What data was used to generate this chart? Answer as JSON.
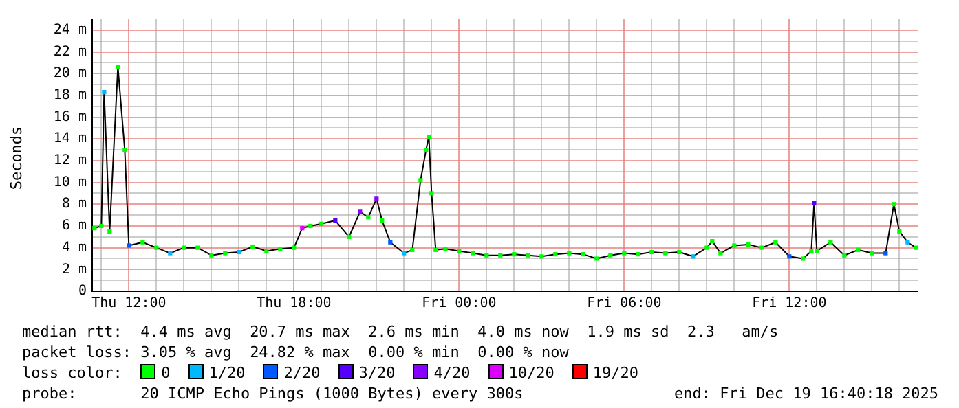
{
  "chart_data": {
    "type": "line",
    "ylabel": "Seconds",
    "legend_title": "loss color:",
    "xlim": [
      "2025-12-18T10:40",
      "2025-12-19T16:40"
    ],
    "ylim": [
      0,
      25
    ],
    "xticks": [
      {
        "value": "2025-12-18T11:00",
        "label": null
      },
      {
        "value": "2025-12-18T12:00",
        "label": "Thu 12:00"
      },
      {
        "value": "2025-12-18T13:00",
        "label": null
      },
      {
        "value": "2025-12-18T14:00",
        "label": null
      },
      {
        "value": "2025-12-18T15:00",
        "label": null
      },
      {
        "value": "2025-12-18T16:00",
        "label": null
      },
      {
        "value": "2025-12-18T17:00",
        "label": null
      },
      {
        "value": "2025-12-18T18:00",
        "label": "Thu 18:00"
      },
      {
        "value": "2025-12-18T19:00",
        "label": null
      },
      {
        "value": "2025-12-18T20:00",
        "label": null
      },
      {
        "value": "2025-12-18T21:00",
        "label": null
      },
      {
        "value": "2025-12-18T22:00",
        "label": null
      },
      {
        "value": "2025-12-18T23:00",
        "label": null
      },
      {
        "value": "2025-12-19T00:00",
        "label": "Fri 00:00"
      },
      {
        "value": "2025-12-19T01:00",
        "label": null
      },
      {
        "value": "2025-12-19T02:00",
        "label": null
      },
      {
        "value": "2025-12-19T03:00",
        "label": null
      },
      {
        "value": "2025-12-19T04:00",
        "label": null
      },
      {
        "value": "2025-12-19T05:00",
        "label": null
      },
      {
        "value": "2025-12-19T06:00",
        "label": "Fri 06:00"
      },
      {
        "value": "2025-12-19T07:00",
        "label": null
      },
      {
        "value": "2025-12-19T08:00",
        "label": null
      },
      {
        "value": "2025-12-19T09:00",
        "label": null
      },
      {
        "value": "2025-12-19T10:00",
        "label": null
      },
      {
        "value": "2025-12-19T11:00",
        "label": null
      },
      {
        "value": "2025-12-19T12:00",
        "label": "Fri 12:00"
      },
      {
        "value": "2025-12-19T13:00",
        "label": null
      },
      {
        "value": "2025-12-19T14:00",
        "label": null
      },
      {
        "value": "2025-12-19T15:00",
        "label": null
      },
      {
        "value": "2025-12-19T16:00",
        "label": null
      }
    ],
    "yticks": [
      0,
      {
        "value": 1,
        "label": null
      },
      {
        "value": 2,
        "label": "2 m"
      },
      {
        "value": 3,
        "label": null
      },
      {
        "value": 4,
        "label": "4 m"
      },
      {
        "value": 5,
        "label": null
      },
      {
        "value": 6,
        "label": "6 m"
      },
      {
        "value": 7,
        "label": null
      },
      {
        "value": 8,
        "label": "8 m"
      },
      {
        "value": 9,
        "label": null
      },
      {
        "value": 10,
        "label": "10 m"
      },
      {
        "value": 11,
        "label": null
      },
      {
        "value": 12,
        "label": "12 m"
      },
      {
        "value": 13,
        "label": null
      },
      {
        "value": 14,
        "label": "14 m"
      },
      {
        "value": 15,
        "label": null
      },
      {
        "value": 16,
        "label": "16 m"
      },
      {
        "value": 17,
        "label": null
      },
      {
        "value": 18,
        "label": "18 m"
      },
      {
        "value": 19,
        "label": null
      },
      {
        "value": 20,
        "label": "20 m"
      },
      {
        "value": 21,
        "label": null
      },
      {
        "value": 22,
        "label": "22 m"
      },
      {
        "value": 23,
        "label": null
      },
      {
        "value": 24,
        "label": "24 m"
      }
    ],
    "grid": true,
    "legend": "bottom",
    "marker": "square",
    "series": [
      {
        "color": "#000000",
        "marker": "none",
        "x": [
          "2025-12-18T10:45",
          "2025-12-18T11:00",
          "2025-12-18T11:06",
          "2025-12-18T11:18",
          "2025-12-18T11:36",
          "2025-12-18T11:51",
          "2025-12-18T12:00",
          "2025-12-18T12:30",
          "2025-12-18T13:00",
          "2025-12-18T13:30",
          "2025-12-18T14:00",
          "2025-12-18T14:30",
          "2025-12-18T15:00",
          "2025-12-18T15:30",
          "2025-12-18T16:00",
          "2025-12-18T16:30",
          "2025-12-18T17:00",
          "2025-12-18T17:30",
          "2025-12-18T18:00",
          "2025-12-18T18:18",
          "2025-12-18T18:36",
          "2025-12-18T19:00",
          "2025-12-18T19:30",
          "2025-12-18T20:00",
          "2025-12-18T20:24",
          "2025-12-18T20:42",
          "2025-12-18T21:00",
          "2025-12-18T21:12",
          "2025-12-18T21:30",
          "2025-12-18T22:00",
          "2025-12-18T22:18",
          "2025-12-18T22:36",
          "2025-12-18T22:48",
          "2025-12-18T22:54",
          "2025-12-18T23:00",
          "2025-12-18T23:09",
          "2025-12-18T23:30",
          "2025-12-19T00:00",
          "2025-12-19T00:30",
          "2025-12-19T01:00",
          "2025-12-19T01:30",
          "2025-12-19T02:00",
          "2025-12-19T02:30",
          "2025-12-19T03:00",
          "2025-12-19T03:30",
          "2025-12-19T04:00",
          "2025-12-19T04:30",
          "2025-12-19T05:00",
          "2025-12-19T05:30",
          "2025-12-19T06:00",
          "2025-12-19T06:30",
          "2025-12-19T07:00",
          "2025-12-19T07:30",
          "2025-12-19T08:00",
          "2025-12-19T08:30",
          "2025-12-19T09:00",
          "2025-12-19T09:12",
          "2025-12-19T09:30",
          "2025-12-19T10:00",
          "2025-12-19T10:30",
          "2025-12-19T11:00",
          "2025-12-19T11:30",
          "2025-12-19T12:00",
          "2025-12-19T12:30",
          "2025-12-19T12:48",
          "2025-12-19T12:54",
          "2025-12-19T13:00",
          "2025-12-19T13:30",
          "2025-12-19T14:00",
          "2025-12-19T14:30",
          "2025-12-19T15:00",
          "2025-12-19T15:30",
          "2025-12-19T15:48",
          "2025-12-19T16:00",
          "2025-12-19T16:18",
          "2025-12-19T16:36"
        ],
        "values": [
          5.8,
          6.0,
          18.3,
          5.5,
          20.6,
          13.0,
          4.2,
          4.5,
          4.0,
          3.5,
          4.0,
          4.0,
          3.3,
          3.5,
          3.6,
          4.1,
          3.7,
          3.9,
          4.0,
          5.8,
          6.0,
          6.2,
          6.5,
          5.0,
          7.3,
          6.8,
          8.5,
          6.5,
          4.5,
          3.5,
          3.8,
          10.2,
          13.0,
          14.2,
          9.0,
          3.8,
          3.9,
          3.7,
          3.5,
          3.3,
          3.3,
          3.4,
          3.3,
          3.2,
          3.4,
          3.5,
          3.4,
          3.0,
          3.3,
          3.5,
          3.4,
          3.6,
          3.5,
          3.6,
          3.2,
          4.0,
          4.6,
          3.5,
          4.2,
          4.3,
          4.0,
          4.5,
          3.2,
          3.0,
          3.7,
          8.1,
          3.7,
          4.5,
          3.3,
          3.8,
          3.5,
          3.5,
          8.0,
          5.5,
          4.5,
          4.0
        ]
      },
      {
        "type": "scatter",
        "name": "0",
        "color": "#00ff00",
        "x": [
          "2025-12-18T10:45",
          "2025-12-18T11:00",
          "2025-12-18T11:18",
          "2025-12-18T11:36",
          "2025-12-18T11:51",
          "2025-12-18T12:30",
          "2025-12-18T13:00",
          "2025-12-18T14:00",
          "2025-12-18T14:30",
          "2025-12-18T15:00",
          "2025-12-18T15:30",
          "2025-12-18T16:30",
          "2025-12-18T17:00",
          "2025-12-18T17:30",
          "2025-12-18T18:00",
          "2025-12-18T18:36",
          "2025-12-18T19:00",
          "2025-12-18T20:00",
          "2025-12-18T20:42",
          "2025-12-18T21:12",
          "2025-12-18T22:18",
          "2025-12-18T22:36",
          "2025-12-18T22:48",
          "2025-12-18T22:54",
          "2025-12-18T23:00",
          "2025-12-18T23:09",
          "2025-12-18T23:30",
          "2025-12-19T00:00",
          "2025-12-19T00:30",
          "2025-12-19T01:00",
          "2025-12-19T01:30",
          "2025-12-19T02:00",
          "2025-12-19T02:30",
          "2025-12-19T03:00",
          "2025-12-19T03:30",
          "2025-12-19T04:00",
          "2025-12-19T04:30",
          "2025-12-19T05:00",
          "2025-12-19T05:30",
          "2025-12-19T06:00",
          "2025-12-19T06:30",
          "2025-12-19T07:00",
          "2025-12-19T07:30",
          "2025-12-19T08:00",
          "2025-12-19T09:00",
          "2025-12-19T09:12",
          "2025-12-19T09:30",
          "2025-12-19T10:00",
          "2025-12-19T10:30",
          "2025-12-19T11:00",
          "2025-12-19T11:30",
          "2025-12-19T12:30",
          "2025-12-19T12:48",
          "2025-12-19T13:00",
          "2025-12-19T13:30",
          "2025-12-19T14:00",
          "2025-12-19T14:30",
          "2025-12-19T15:00",
          "2025-12-19T15:48",
          "2025-12-19T16:00",
          "2025-12-19T16:36"
        ],
        "values": [
          5.8,
          6.0,
          5.5,
          20.6,
          13.0,
          4.5,
          4.0,
          4.0,
          4.0,
          3.3,
          3.5,
          4.1,
          3.7,
          3.9,
          4.0,
          6.0,
          6.2,
          5.0,
          6.8,
          6.5,
          3.8,
          10.2,
          13.0,
          14.2,
          9.0,
          3.8,
          3.9,
          3.7,
          3.5,
          3.3,
          3.3,
          3.4,
          3.3,
          3.2,
          3.4,
          3.5,
          3.4,
          3.0,
          3.3,
          3.5,
          3.4,
          3.6,
          3.5,
          3.6,
          4.0,
          4.6,
          3.5,
          4.2,
          4.3,
          4.0,
          4.5,
          3.0,
          3.7,
          3.7,
          4.5,
          3.3,
          3.8,
          3.5,
          8.0,
          5.5,
          4.0
        ]
      },
      {
        "type": "scatter",
        "name": "1/20",
        "color": "#00b8ff",
        "x": [
          "2025-12-18T11:06",
          "2025-12-18T13:30",
          "2025-12-18T16:00",
          "2025-12-18T22:00",
          "2025-12-19T08:30",
          "2025-12-19T16:18"
        ],
        "values": [
          18.3,
          3.5,
          3.6,
          3.5,
          3.2,
          4.5
        ]
      },
      {
        "type": "scatter",
        "name": "2/20",
        "color": "#0059ff",
        "x": [
          "2025-12-18T12:00",
          "2025-12-18T21:30",
          "2025-12-19T12:00",
          "2025-12-19T15:30"
        ],
        "values": [
          4.2,
          4.5,
          3.2,
          3.5
        ]
      },
      {
        "type": "scatter",
        "name": "3/20",
        "color": "#5500ff",
        "x": [
          "2025-12-18T19:30",
          "2025-12-19T12:54"
        ],
        "values": [
          6.5,
          8.1
        ]
      },
      {
        "type": "scatter",
        "name": "4/20",
        "color": "#8800ff",
        "x": [
          "2025-12-18T20:24",
          "2025-12-18T21:00"
        ],
        "values": [
          7.3,
          8.5
        ]
      },
      {
        "type": "scatter",
        "name": "10/20",
        "color": "#dd00ff",
        "x": [
          "2025-12-18T18:18"
        ],
        "values": [
          5.8
        ]
      },
      {
        "type": "scatter",
        "name": "19/20",
        "color": "#ff0000"
      }
    ],
    "annotations": [
      "median rtt:  4.4 ms avg  20.7 ms max  2.6 ms min  4.0 ms now  1.9 ms sd  2.3   am/s",
      "packet loss: 3.05 % avg  24.82 % max  0.00 % min  0.00 % now",
      "probe:       20 ICMP Echo Pings (1000 Bytes) every 300s",
      "end: Fri Dec 19 16:40:18 2025"
    ]
  }
}
